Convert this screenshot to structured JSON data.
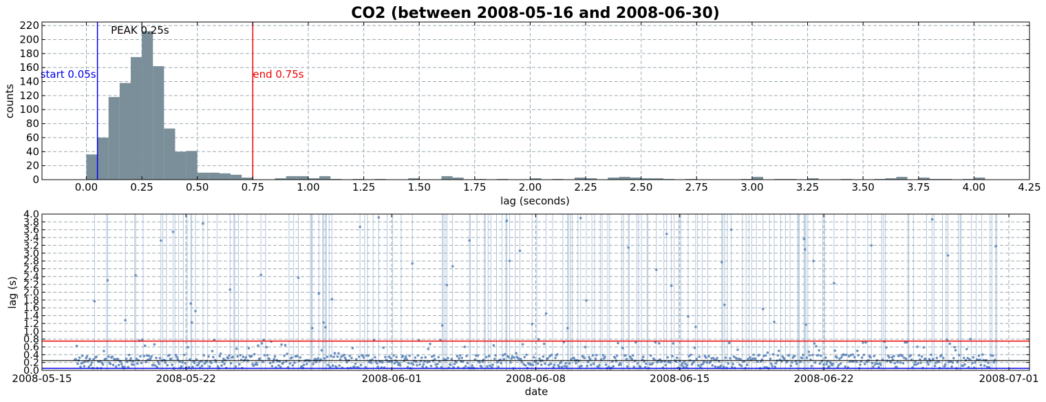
{
  "figure_title": "CO2 (between 2008-05-16 and 2008-06-30)",
  "colors": {
    "bar_fill": "#7a8f99",
    "start_line": "#0000ee",
    "end_line": "#ee0000",
    "peak_line": "#000000",
    "scatter_point": "#6a8fbf",
    "scatter_vline": "#9ab4cf",
    "grid": "#9aa9b1"
  },
  "chart_data": [
    {
      "type": "bar",
      "xlabel": "lag (seconds)",
      "ylabel": "counts",
      "xlim": [
        -0.2,
        4.25
      ],
      "ylim": [
        0,
        225
      ],
      "xticks": [
        "0.00",
        "0.25",
        "0.50",
        "0.75",
        "1.00",
        "1.25",
        "1.50",
        "1.75",
        "2.00",
        "2.25",
        "2.50",
        "2.75",
        "3.00",
        "3.25",
        "3.50",
        "3.75",
        "4.00",
        "4.25"
      ],
      "yticks": [
        "0",
        "20",
        "40",
        "60",
        "80",
        "100",
        "120",
        "140",
        "160",
        "180",
        "200",
        "220"
      ],
      "grid": true,
      "bin_width": 0.05,
      "bin_starts": [
        0.0,
        0.05,
        0.1,
        0.15,
        0.2,
        0.25,
        0.3,
        0.35,
        0.4,
        0.45,
        0.5,
        0.55,
        0.6,
        0.65,
        0.7,
        0.85,
        0.9,
        0.95,
        1.0,
        1.05,
        1.1,
        1.2,
        1.3,
        1.45,
        1.6,
        1.65,
        1.75,
        1.85,
        2.0,
        2.1,
        2.2,
        2.25,
        2.35,
        2.4,
        2.45,
        2.5,
        2.55,
        2.6,
        2.7,
        2.95,
        3.0,
        3.1,
        3.15,
        3.25,
        3.4,
        3.55,
        3.6,
        3.65,
        3.75,
        3.8,
        3.85,
        3.95,
        4.0
      ],
      "counts": [
        36,
        60,
        118,
        138,
        175,
        212,
        162,
        73,
        40,
        41,
        10,
        10,
        9,
        7,
        3,
        2,
        5,
        5,
        2,
        5,
        1,
        1,
        1,
        2,
        5,
        3,
        1,
        1,
        2,
        1,
        3,
        2,
        3,
        4,
        3,
        2,
        2,
        1,
        1,
        1,
        4,
        1,
        1,
        2,
        1,
        1,
        2,
        4,
        3,
        1,
        1,
        1,
        3
      ],
      "markers": [
        {
          "label": "start 0.05s",
          "x": 0.05
        },
        {
          "label": "PEAK 0.25s",
          "x": 0.25
        },
        {
          "label": "end 0.75s",
          "x": 0.75
        }
      ]
    },
    {
      "type": "scatter",
      "xlabel": "date",
      "ylabel": "lag (s)",
      "xlim": [
        "2008-05-15",
        "2008-07-02"
      ],
      "ylim": [
        0,
        4.0
      ],
      "xticks": [
        "2008-05-15",
        "2008-05-22",
        "2008-06-01",
        "2008-06-08",
        "2008-06-15",
        "2008-06-22",
        "2008-07-01"
      ],
      "yticks": [
        "0.0",
        "0.2",
        "0.4",
        "0.6",
        "0.8",
        "1.0",
        "1.2",
        "1.4",
        "1.6",
        "1.8",
        "2.0",
        "2.2",
        "2.4",
        "2.6",
        "2.8",
        "3.0",
        "3.2",
        "3.4",
        "3.6",
        "3.8",
        "4.0"
      ],
      "grid": true,
      "hlines": [
        {
          "name": "start",
          "y": 0.05
        },
        {
          "name": "peak",
          "y": 0.25
        },
        {
          "name": "end",
          "y": 0.75
        }
      ],
      "date_range": [
        "2008-05-16",
        "2008-06-30"
      ],
      "points_per_day": 22
    }
  ]
}
